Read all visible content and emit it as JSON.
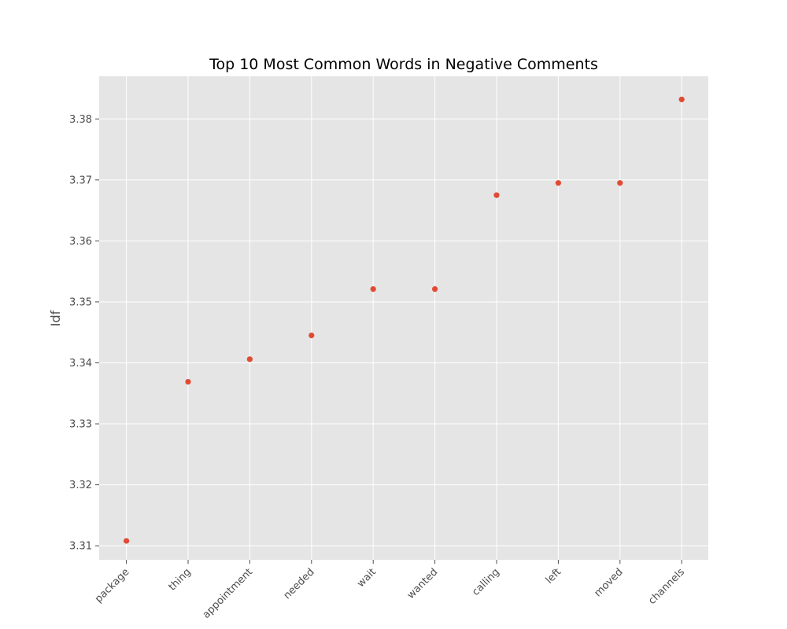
{
  "chart_data": {
    "type": "scatter",
    "title": "Top 10 Most Common Words in Negative Comments",
    "xlabel": "",
    "ylabel": "Idf",
    "categories": [
      "package",
      "thing",
      "appointment",
      "needed",
      "wait",
      "wanted",
      "calling",
      "left",
      "moved",
      "channels"
    ],
    "series": [
      {
        "values": [
          3.3108,
          3.3369,
          3.3406,
          3.3445,
          3.3521,
          3.3521,
          3.3675,
          3.3695,
          3.3695,
          3.3832
        ]
      }
    ],
    "ylim": [
      3.3077,
      3.387
    ],
    "yticks": [
      3.31,
      3.32,
      3.33,
      3.34,
      3.35,
      3.36,
      3.37,
      3.38
    ],
    "ytick_labels": [
      "3.31",
      "3.32",
      "3.33",
      "3.34",
      "3.35",
      "3.36",
      "3.37",
      "3.38"
    ],
    "xtick_rotation_deg": 45,
    "grid": true,
    "legend": false,
    "colors": {
      "background": "#e5e5e5",
      "grid": "#ffffff",
      "marker": "#e24a33",
      "text": "#4d4d4d",
      "title": "#000000"
    }
  }
}
